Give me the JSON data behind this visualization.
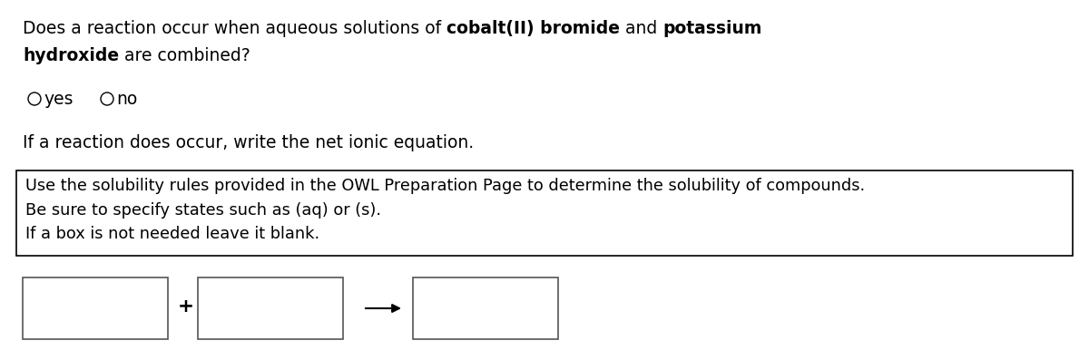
{
  "background_color": "#ffffff",
  "text_color": "#000000",
  "font_family": "DejaVu Sans",
  "font_size": 13.5,
  "font_size_box": 12.8,
  "line1_parts": [
    {
      "text": "Does a reaction occur when aqueous solutions of ",
      "bold": false
    },
    {
      "text": "cobalt(II) bromide",
      "bold": true
    },
    {
      "text": " and ",
      "bold": false
    },
    {
      "text": "potassium",
      "bold": true
    }
  ],
  "line2_parts": [
    {
      "text": "hydroxide",
      "bold": true
    },
    {
      "text": " are combined?",
      "bold": false
    }
  ],
  "question_line": "If a reaction does occur, write the net ionic equation.",
  "box_line1": "Use the solubility rules provided in the OWL Preparation Page to determine the solubility of compounds.",
  "box_line2": "Be sure to specify states such as (aq) or (s).",
  "box_line3": "If a box is not needed leave it blank."
}
